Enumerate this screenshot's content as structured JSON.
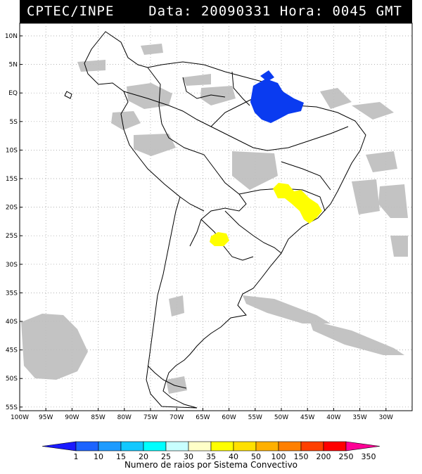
{
  "header": {
    "agency": "CPTEC/INPE",
    "date_label": "Data:",
    "date_value": "20090331",
    "time_label": "Hora:",
    "time_value": "0045 GMT"
  },
  "map": {
    "lat_ticks": [
      "10N",
      "5N",
      "EQ",
      "5S",
      "10S",
      "15S",
      "20S",
      "25S",
      "30S",
      "35S",
      "40S",
      "45S",
      "50S",
      "55S"
    ],
    "lon_ticks": [
      "100W",
      "95W",
      "90W",
      "85W",
      "80W",
      "75W",
      "70W",
      "65W",
      "60W",
      "55W",
      "50W",
      "45W",
      "40W",
      "35W",
      "30W"
    ],
    "colors": {
      "ocean": "#ffffff",
      "land_outline": "#000000",
      "cloud": "#bdbdbd",
      "blue": "#0a3bf0",
      "yellow": "#ffff00"
    }
  },
  "colorbar": {
    "ticks": [
      "1",
      "10",
      "15",
      "20",
      "25",
      "30",
      "35",
      "40",
      "50",
      "100",
      "150",
      "200",
      "250",
      "350"
    ],
    "colors": [
      "#1a1aff",
      "#1c64ff",
      "#1e9bff",
      "#13c8ff",
      "#00ffff",
      "#c8ffff",
      "#ffffc8",
      "#ffff00",
      "#ffe000",
      "#ffb000",
      "#ff8000",
      "#ff4000",
      "#ff0000",
      "#ff0096"
    ],
    "caption": "Numero de raios por Sistema Convectivo"
  }
}
